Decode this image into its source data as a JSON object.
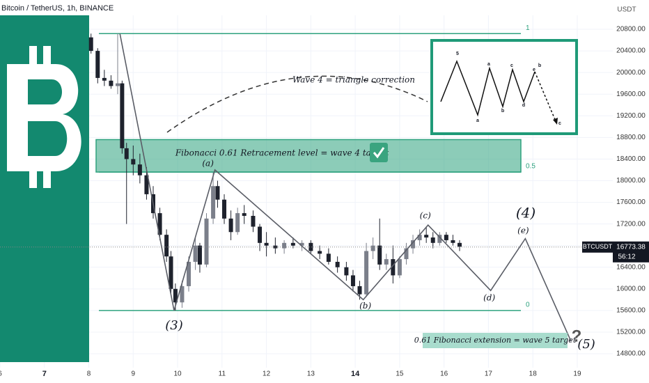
{
  "chart_data": {
    "type": "candlestick",
    "title": "Bitcoin / TetherUS, 1h, BINANCE",
    "y_axis_label": "USDT",
    "x": [
      8.05,
      8.2,
      8.35,
      8.5,
      8.65,
      8.75,
      8.85,
      9.0,
      9.15,
      9.3,
      9.45,
      9.6,
      9.75,
      9.85,
      9.95,
      10.1,
      10.25,
      10.4,
      10.5,
      10.65,
      10.8,
      10.9,
      11.05,
      11.2,
      11.35,
      11.5,
      11.7,
      11.85,
      12.0,
      12.2,
      12.4,
      12.6,
      12.8,
      13.0,
      13.2,
      13.4,
      13.6,
      13.8,
      13.95,
      14.1,
      14.25,
      14.4,
      14.55,
      14.7,
      14.85,
      15.0,
      15.15,
      15.3,
      15.45,
      15.6,
      15.75,
      15.9,
      16.05,
      16.2,
      16.35
    ],
    "open": [
      20650,
      20400,
      19900,
      19850,
      19750,
      19800,
      18600,
      18400,
      18300,
      18100,
      17750,
      17400,
      17000,
      16600,
      16000,
      15750,
      16050,
      16500,
      16800,
      16450,
      17300,
      17900,
      17650,
      17300,
      17050,
      17400,
      17350,
      17150,
      16850,
      16800,
      16750,
      16850,
      16800,
      16850,
      16700,
      16650,
      16500,
      16400,
      16250,
      16050,
      15900,
      16700,
      16800,
      16450,
      16550,
      16250,
      16550,
      16750,
      16900,
      17000,
      16950,
      16850,
      17000,
      16900,
      16850
    ],
    "high": [
      20720,
      20450,
      20050,
      19950,
      20720,
      19850,
      18700,
      18650,
      18500,
      18250,
      17900,
      17500,
      17100,
      16700,
      16100,
      16150,
      16600,
      16950,
      16850,
      17400,
      18150,
      18000,
      17750,
      17450,
      17500,
      17550,
      17450,
      17200,
      17050,
      16950,
      16900,
      16950,
      16900,
      16900,
      16800,
      16750,
      16600,
      16500,
      16350,
      16150,
      16850,
      16950,
      17300,
      16650,
      16800,
      16600,
      16850,
      17000,
      17100,
      17150,
      17050,
      17050,
      17050,
      17000,
      16900
    ],
    "low": [
      20350,
      19800,
      19750,
      19700,
      19600,
      18500,
      17200,
      18100,
      17950,
      17650,
      17300,
      16900,
      16500,
      15900,
      15600,
      15650,
      15950,
      16350,
      16300,
      16400,
      17200,
      17500,
      17200,
      16900,
      17000,
      17200,
      17050,
      16700,
      16600,
      16650,
      16650,
      16750,
      16700,
      16650,
      16550,
      16450,
      16300,
      16150,
      15950,
      15800,
      15850,
      16550,
      16350,
      16350,
      16100,
      16200,
      16450,
      16650,
      16800,
      16850,
      16750,
      16800,
      16850,
      16800,
      16700
    ],
    "close": [
      20400,
      19900,
      19850,
      19750,
      19800,
      18600,
      18400,
      18300,
      18100,
      17750,
      17400,
      17000,
      16600,
      16000,
      15750,
      16050,
      16500,
      16800,
      16450,
      17300,
      17900,
      17650,
      17300,
      17050,
      17400,
      17350,
      17150,
      16850,
      16800,
      16750,
      16850,
      16800,
      16850,
      16700,
      16650,
      16500,
      16400,
      16250,
      16050,
      15900,
      16700,
      16800,
      16450,
      16550,
      16250,
      16550,
      16750,
      16900,
      17000,
      16950,
      16850,
      17000,
      16900,
      16850,
      16780
    ],
    "up_color": "#7b7f8a",
    "down_color": "#1e222d",
    "xlim": [
      6,
      19.8
    ],
    "xticks": [
      6,
      7,
      8,
      9,
      10,
      11,
      12,
      13,
      14,
      15,
      16,
      17,
      18,
      19
    ],
    "ylim": [
      14543,
      21341
    ],
    "yticks": [
      {
        "value": 14800,
        "label": "14800.00"
      },
      {
        "value": 15200,
        "label": "15200.00"
      },
      {
        "value": 15600,
        "label": "15600.00"
      },
      {
        "value": 16000,
        "label": "16000.00"
      },
      {
        "value": 16400,
        "label": "16400.00"
      },
      {
        "value": 16800,
        "label": "16800.00"
      },
      {
        "value": 17200,
        "label": "17200.00"
      },
      {
        "value": 17600,
        "label": "17600.00"
      },
      {
        "value": 18000,
        "label": "18000.00"
      },
      {
        "value": 18400,
        "label": "18400.00"
      },
      {
        "value": 18800,
        "label": "18800.00"
      },
      {
        "value": 19200,
        "label": "19200.00"
      },
      {
        "value": 19600,
        "label": "19600.00"
      },
      {
        "value": 20000,
        "label": "20000.00"
      },
      {
        "value": 20400,
        "label": "20400.00"
      },
      {
        "value": 20800,
        "label": "20800.00"
      }
    ],
    "grid": true,
    "last_price": 16773.38,
    "symbol": "BTCUSDT",
    "countdown": "56:12",
    "fib_color": "#2ea27e",
    "fib_levels": [
      {
        "label": "1",
        "value": 20720
      },
      {
        "label": "0.5",
        "value": 18160
      },
      {
        "label": "0",
        "value": 15600
      }
    ],
    "fib_zone": [
      18160,
      18760
    ],
    "wave": {
      "color": "#5a5d66",
      "x": [
        8.7,
        9.92,
        10.84,
        14.18,
        15.64,
        17.05,
        17.83,
        18.86
      ],
      "values": [
        20720,
        15600,
        18200,
        15800,
        17180,
        15970,
        16930,
        15030
      ],
      "labels": [
        null,
        "(3)",
        "(a)",
        "(b)",
        "(c)",
        "(d)",
        "(e)",
        "(5)"
      ]
    }
  },
  "annotations": {
    "wave4_title": "Wave 4 = triangle correction",
    "wave4_label": "(4)",
    "fib_target": "Fibonacci 0.61 Retracement level = wave 4 target",
    "ext_target": "0.61 Fibonacci extension = wave 5 target",
    "question": "?"
  },
  "inset": {
    "labels": [
      "5",
      "a",
      "a",
      "b",
      "c",
      "d",
      "e",
      "b",
      "c"
    ]
  }
}
